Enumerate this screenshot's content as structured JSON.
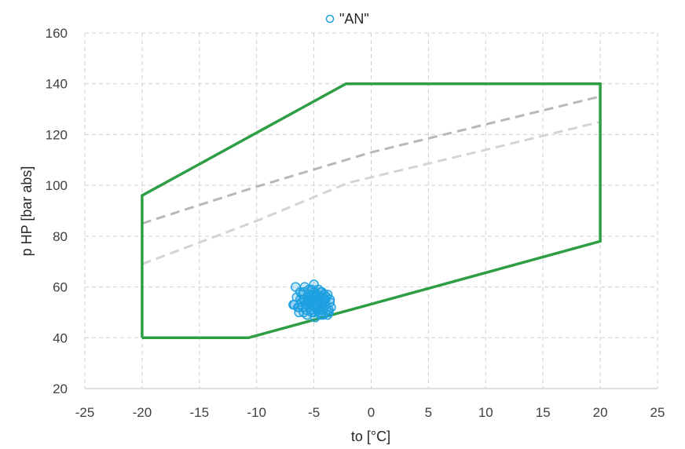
{
  "chart_data": {
    "type": "scatter",
    "title": "",
    "xlabel": "to [°C]",
    "ylabel": "p HP [bar abs]",
    "xlim": [
      -25,
      25
    ],
    "ylim": [
      20,
      160
    ],
    "xticks": [
      -25,
      -20,
      -15,
      -10,
      -5,
      0,
      5,
      10,
      15,
      20,
      25
    ],
    "yticks": [
      20,
      40,
      60,
      80,
      100,
      120,
      140,
      160
    ],
    "x_tick_labels": [
      "-25",
      "-20",
      "-15",
      "-10",
      "-5",
      "0",
      "5",
      "10",
      "15",
      "20",
      "25"
    ],
    "y_tick_labels": [
      "20",
      "40",
      "60",
      "80",
      "100",
      "120",
      "140",
      "160"
    ],
    "grid": true,
    "legend": {
      "placement": "top-center",
      "entries": [
        "\"AN\""
      ]
    },
    "colors": {
      "envelope": "#2e9e45",
      "scatter": "#1ea0e0",
      "dashed_upper": "#b8b8b8",
      "dashed_lower": "#d4d4d4"
    },
    "envelope": {
      "x": [
        -20,
        -20,
        -2.2,
        20,
        20,
        -10.7,
        -20
      ],
      "y": [
        40,
        96,
        140,
        140,
        78,
        40,
        40
      ]
    },
    "dashed_upper": {
      "x": [
        -20,
        -10,
        0,
        10,
        20
      ],
      "y": [
        85,
        99.5,
        113,
        124,
        135
      ]
    },
    "dashed_lower": {
      "x": [
        -20,
        -10,
        -2,
        10,
        20
      ],
      "y": [
        69,
        86,
        101,
        114,
        125
      ]
    },
    "scatter_series": {
      "name": "\"AN\"",
      "x": [
        -6.8,
        -6.5,
        -6.3,
        -6.2,
        -6.0,
        -5.9,
        -5.8,
        -5.6,
        -5.5,
        -5.4,
        -5.3,
        -5.2,
        -5.1,
        -5.0,
        -4.9,
        -4.8,
        -4.7,
        -4.6,
        -4.5,
        -4.4,
        -4.3,
        -4.2,
        -4.1,
        -4.0,
        -3.9,
        -3.8,
        -3.7,
        -3.6,
        -3.5,
        -6.6,
        -6.1,
        -5.7,
        -5.2,
        -4.7,
        -4.2,
        -3.8,
        -6.4,
        -5.9,
        -5.5,
        -5.0,
        -4.6,
        -4.1,
        -3.7,
        -6.0,
        -5.6,
        -5.1,
        -4.8,
        -4.4,
        -4.0,
        -5.3,
        -4.9,
        -4.5,
        -5.8,
        -5.4,
        -5.0,
        -4.6,
        -4.3,
        -3.9,
        -6.2,
        -5.7,
        -5.2,
        -4.8,
        -4.3,
        -5.5,
        -5.0,
        -4.5,
        -4.1,
        -5.9,
        -5.3,
        -4.7,
        -6.7,
        -5.1,
        -4.4,
        -3.6,
        -6.3,
        -5.6,
        -4.9,
        -4.2,
        -5.4,
        -4.8
      ],
      "y": [
        53,
        56,
        50,
        58,
        52,
        55,
        60,
        49,
        57,
        53,
        51,
        59,
        55,
        61,
        48,
        54,
        57,
        50,
        56,
        52,
        58,
        49,
        55,
        53,
        51,
        57,
        50,
        54,
        52,
        60,
        54,
        51,
        57,
        53,
        56,
        49,
        52,
        58,
        55,
        50,
        59,
        54,
        51,
        57,
        53,
        56,
        52,
        58,
        55,
        54,
        57,
        51,
        55,
        59,
        52,
        55,
        53,
        56,
        55,
        53,
        50,
        56,
        54,
        56,
        58,
        54,
        57,
        50,
        55,
        52,
        53,
        53,
        49,
        55,
        52,
        54,
        56,
        51,
        54,
        52
      ]
    }
  }
}
